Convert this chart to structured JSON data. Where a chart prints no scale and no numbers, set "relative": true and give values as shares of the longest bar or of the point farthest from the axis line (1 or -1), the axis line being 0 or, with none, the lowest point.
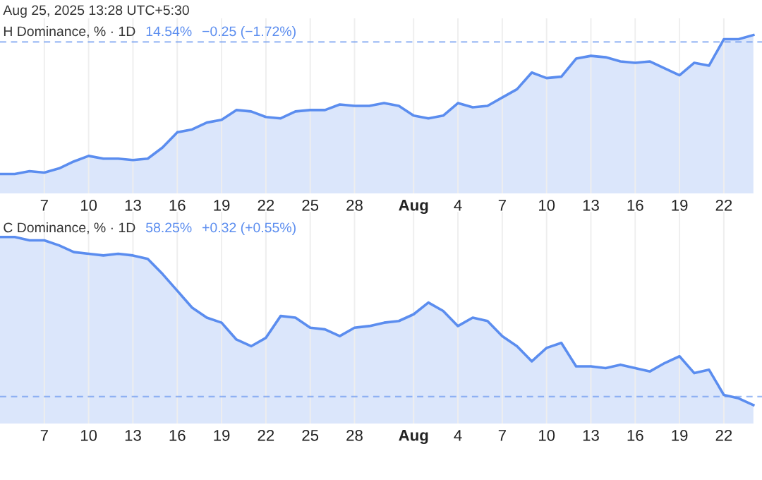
{
  "chart_data": [
    {
      "type": "area",
      "title": "H Dominance, % · 1D",
      "annotations": [
        "Aug 25, 2025 13:28 UTC+5:30",
        "14.54%",
        "−0.25 (−1.72%)"
      ],
      "relative": true,
      "tick_labels": "x",
      "grid": "x",
      "legend": false,
      "x": [
        "2025-07-04",
        "2025-07-05",
        "2025-07-06",
        "2025-07-07",
        "2025-07-08",
        "2025-07-09",
        "2025-07-10",
        "2025-07-11",
        "2025-07-12",
        "2025-07-13",
        "2025-07-14",
        "2025-07-15",
        "2025-07-16",
        "2025-07-17",
        "2025-07-18",
        "2025-07-19",
        "2025-07-20",
        "2025-07-21",
        "2025-07-22",
        "2025-07-23",
        "2025-07-24",
        "2025-07-25",
        "2025-07-26",
        "2025-07-27",
        "2025-07-28",
        "2025-07-29",
        "2025-07-30",
        "2025-07-31",
        "2025-08-01",
        "2025-08-02",
        "2025-08-03",
        "2025-08-04",
        "2025-08-05",
        "2025-08-06",
        "2025-08-07",
        "2025-08-08",
        "2025-08-09",
        "2025-08-10",
        "2025-08-11",
        "2025-08-12",
        "2025-08-13",
        "2025-08-14",
        "2025-08-15",
        "2025-08-16",
        "2025-08-17",
        "2025-08-18",
        "2025-08-19",
        "2025-08-20",
        "2025-08-21",
        "2025-08-22",
        "2025-08-23",
        "2025-08-24"
      ],
      "xlim": [
        "2025-07-04",
        "2025-08-24T14:00"
      ],
      "xticks": [
        {
          "value": "2025-07-07",
          "label": "7"
        },
        {
          "value": "2025-07-10",
          "label": "10"
        },
        {
          "value": "2025-07-13",
          "label": "13"
        },
        {
          "value": "2025-07-16",
          "label": "16"
        },
        {
          "value": "2025-07-19",
          "label": "19"
        },
        {
          "value": "2025-07-22",
          "label": "22"
        },
        {
          "value": "2025-07-25",
          "label": "25"
        },
        {
          "value": "2025-07-28",
          "label": "28"
        },
        {
          "value": "2025-08-01",
          "label": "Aug"
        },
        {
          "value": "2025-08-04",
          "label": "4"
        },
        {
          "value": "2025-08-07",
          "label": "7"
        },
        {
          "value": "2025-08-10",
          "label": "10"
        },
        {
          "value": "2025-08-13",
          "label": "13"
        },
        {
          "value": "2025-08-16",
          "label": "16"
        },
        {
          "value": "2025-08-19",
          "label": "19"
        },
        {
          "value": "2025-08-22",
          "label": "22"
        }
      ],
      "ref_lines": [
        {
          "axis": "y",
          "value": 0.95,
          "color": "#5b8def",
          "line_style": "dashed"
        }
      ],
      "series": [
        {
          "color": "#5b8def",
          "values": [
            0.0,
            0.0,
            0.02,
            0.01,
            0.04,
            0.09,
            0.13,
            0.11,
            0.11,
            0.1,
            0.11,
            0.19,
            0.3,
            0.32,
            0.37,
            0.39,
            0.46,
            0.45,
            0.41,
            0.4,
            0.45,
            0.46,
            0.46,
            0.5,
            0.49,
            0.49,
            0.51,
            0.49,
            0.42,
            0.4,
            0.42,
            0.51,
            0.48,
            0.49,
            0.55,
            0.61,
            0.73,
            0.69,
            0.7,
            0.83,
            0.85,
            0.84,
            0.81,
            0.8,
            0.81,
            0.76,
            0.71,
            0.8,
            0.78,
            0.97,
            0.97,
            1.0
          ]
        }
      ]
    },
    {
      "type": "area",
      "title": "C Dominance, % · 1D",
      "annotations": [
        "58.25%",
        "+0.32 (+0.55%)"
      ],
      "relative": true,
      "tick_labels": "x",
      "grid": "x",
      "legend": false,
      "x": [
        "2025-07-04",
        "2025-07-05",
        "2025-07-06",
        "2025-07-07",
        "2025-07-08",
        "2025-07-09",
        "2025-07-10",
        "2025-07-11",
        "2025-07-12",
        "2025-07-13",
        "2025-07-14",
        "2025-07-15",
        "2025-07-16",
        "2025-07-17",
        "2025-07-18",
        "2025-07-19",
        "2025-07-20",
        "2025-07-21",
        "2025-07-22",
        "2025-07-23",
        "2025-07-24",
        "2025-07-25",
        "2025-07-26",
        "2025-07-27",
        "2025-07-28",
        "2025-07-29",
        "2025-07-30",
        "2025-07-31",
        "2025-08-01",
        "2025-08-02",
        "2025-08-03",
        "2025-08-04",
        "2025-08-05",
        "2025-08-06",
        "2025-08-07",
        "2025-08-08",
        "2025-08-09",
        "2025-08-10",
        "2025-08-11",
        "2025-08-12",
        "2025-08-13",
        "2025-08-14",
        "2025-08-15",
        "2025-08-16",
        "2025-08-17",
        "2025-08-18",
        "2025-08-19",
        "2025-08-20",
        "2025-08-21",
        "2025-08-22",
        "2025-08-23",
        "2025-08-24"
      ],
      "xlim": [
        "2025-07-04",
        "2025-08-24T14:00"
      ],
      "xticks": [
        {
          "value": "2025-07-07",
          "label": "7"
        },
        {
          "value": "2025-07-10",
          "label": "10"
        },
        {
          "value": "2025-07-13",
          "label": "13"
        },
        {
          "value": "2025-07-16",
          "label": "16"
        },
        {
          "value": "2025-07-19",
          "label": "19"
        },
        {
          "value": "2025-07-22",
          "label": "22"
        },
        {
          "value": "2025-07-25",
          "label": "25"
        },
        {
          "value": "2025-07-28",
          "label": "28"
        },
        {
          "value": "2025-08-01",
          "label": "Aug"
        },
        {
          "value": "2025-08-04",
          "label": "4"
        },
        {
          "value": "2025-08-07",
          "label": "7"
        },
        {
          "value": "2025-08-10",
          "label": "10"
        },
        {
          "value": "2025-08-13",
          "label": "13"
        },
        {
          "value": "2025-08-16",
          "label": "16"
        },
        {
          "value": "2025-08-19",
          "label": "19"
        },
        {
          "value": "2025-08-22",
          "label": "22"
        }
      ],
      "ref_lines": [
        {
          "axis": "y",
          "value": 0.05,
          "color": "#5b8def",
          "line_style": "dashed"
        }
      ],
      "series": [
        {
          "color": "#5b8def",
          "values": [
            1.0,
            1.0,
            0.98,
            0.98,
            0.95,
            0.91,
            0.9,
            0.89,
            0.9,
            0.89,
            0.87,
            0.78,
            0.68,
            0.58,
            0.52,
            0.49,
            0.39,
            0.35,
            0.4,
            0.53,
            0.52,
            0.46,
            0.45,
            0.41,
            0.46,
            0.47,
            0.49,
            0.5,
            0.54,
            0.61,
            0.56,
            0.47,
            0.52,
            0.5,
            0.41,
            0.35,
            0.26,
            0.34,
            0.37,
            0.23,
            0.23,
            0.22,
            0.24,
            0.22,
            0.2,
            0.25,
            0.29,
            0.19,
            0.21,
            0.06,
            0.04,
            0.0
          ]
        }
      ]
    }
  ]
}
